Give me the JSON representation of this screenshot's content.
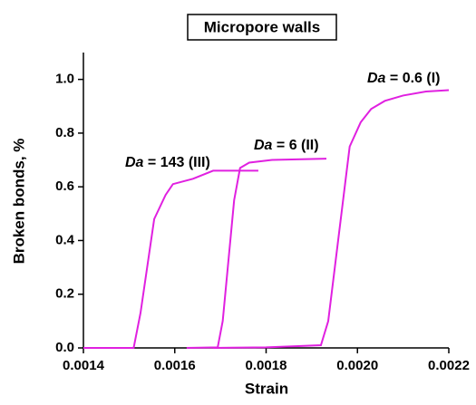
{
  "chart_data": {
    "type": "line",
    "title": "Micropore walls",
    "x_label": "Strain",
    "y_label": "Broken bonds, %",
    "xlim": [
      0.0014,
      0.0022
    ],
    "xticks": [
      0.0014,
      0.0016,
      0.0018,
      {
        "value": 0.002,
        "label": "0.0020"
      },
      0.0022
    ],
    "ylim": [
      0,
      1.1
    ],
    "yticks": [
      {
        "value": 0,
        "label": "0.0"
      },
      0.2,
      0.4,
      0.6,
      0.8,
      {
        "value": 1,
        "label": "1.0"
      }
    ],
    "series": [
      {
        "name": "Da = 0.6 (I)",
        "color": "#e020e0",
        "x": [
          0.001684,
          0.0018,
          0.00192,
          0.001936,
          0.001983,
          0.002007,
          0.00203,
          0.00206,
          0.0021,
          0.00215,
          0.0022
        ],
        "values": [
          0,
          0.002,
          0.01,
          0.1,
          0.75,
          0.84,
          0.89,
          0.92,
          0.94,
          0.955,
          0.96
        ]
      },
      {
        "name": "Da = 6 (II)",
        "color": "#e020e0",
        "x": [
          0.001626,
          0.001694,
          0.001705,
          0.00173,
          0.001743,
          0.001763,
          0.001813,
          0.001932
        ],
        "values": [
          0,
          0.002,
          0.1,
          0.55,
          0.67,
          0.69,
          0.7,
          0.705
        ]
      },
      {
        "name": "Da = 143 (III)",
        "color": "#e020e0",
        "x": [
          0.0014,
          0.00151,
          0.001525,
          0.001555,
          0.00158,
          0.001596,
          0.00164,
          0.001684,
          0.001783
        ],
        "values": [
          0,
          0,
          0.13,
          0.48,
          0.57,
          0.61,
          0.63,
          0.66,
          0.66
        ]
      }
    ]
  }
}
